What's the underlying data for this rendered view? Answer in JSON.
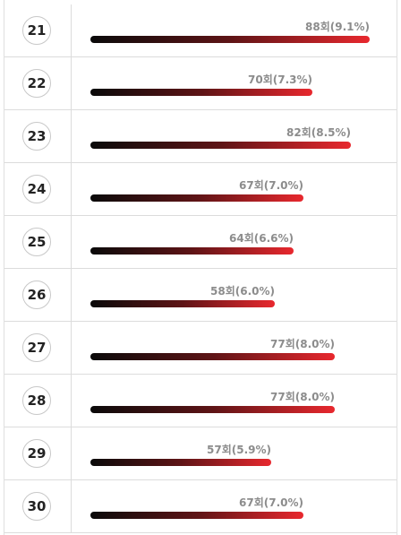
{
  "chart_data": {
    "type": "bar",
    "orientation": "horizontal",
    "categories": [
      "21",
      "22",
      "23",
      "24",
      "25",
      "26",
      "27",
      "28",
      "29",
      "30"
    ],
    "values": [
      88,
      70,
      82,
      67,
      64,
      58,
      77,
      77,
      57,
      67
    ],
    "percents": [
      "9.1%",
      "7.3%",
      "8.5%",
      "7.0%",
      "6.6%",
      "6.0%",
      "8.0%",
      "8.0%",
      "5.9%",
      "7.0%"
    ],
    "labels": [
      "88회(9.1%)",
      "70회(7.3%)",
      "82회(8.5%)",
      "67회(7.0%)",
      "64회(6.6%)",
      "58회(6.0%)",
      "77회(8.0%)",
      "77회(8.0%)",
      "57회(5.9%)",
      "67회(7.0%)"
    ],
    "xlim": [
      0,
      88
    ],
    "bar_gradient": [
      "#0a0a0a",
      "#e8282e"
    ],
    "label_color": "#8c8c8c"
  }
}
